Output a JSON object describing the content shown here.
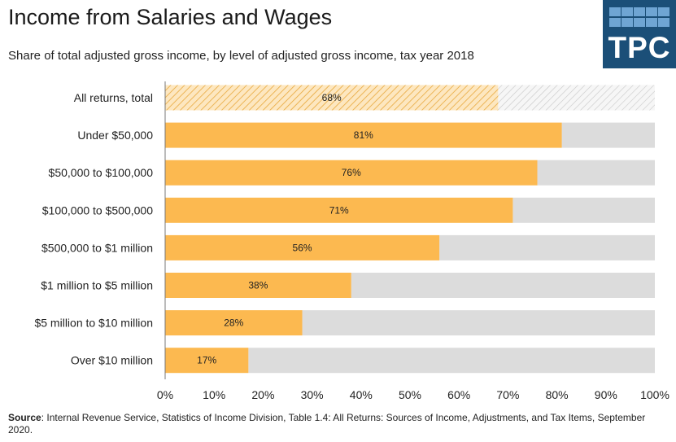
{
  "title": "Income from Salaries and Wages",
  "subtitle": "Share of total adjusted gross income, by level of adjusted gross income, tax year 2018",
  "logo": {
    "text": "TPC",
    "background": "#1b4f78",
    "cell_color": "#6fa5d3"
  },
  "source": {
    "label": "Source",
    "text": ": Internal Revenue Service, Statistics of Income Division, Table 1.4: All Returns: Sources of Income, Adjustments, and Tax Items, September 2020."
  },
  "colors": {
    "bar": "#fcb950",
    "remainder": "#dcdcdc",
    "hatch_line": "#e8a83c",
    "hatch_gray": "#c8c8c8"
  },
  "chart_data": {
    "type": "bar",
    "orientation": "horizontal",
    "stacked": true,
    "categories": [
      "All returns, total",
      "Under $50,000",
      "$50,000 to $100,000",
      "$100,000 to $500,000",
      "$500,000 to $1 million",
      "$1 million to $5 million",
      "$5 million to $10 million",
      "Over $10 million"
    ],
    "values": [
      68,
      81,
      76,
      71,
      56,
      38,
      28,
      17
    ],
    "data_labels": [
      "68%",
      "81%",
      "76%",
      "71%",
      "56%",
      "38%",
      "28%",
      "17%"
    ],
    "hatched_categories": [
      "All returns, total"
    ],
    "xlim": [
      0,
      100
    ],
    "xticks": [
      0,
      10,
      20,
      30,
      40,
      50,
      60,
      70,
      80,
      90,
      100
    ],
    "xtick_labels": [
      "0%",
      "10%",
      "20%",
      "30%",
      "40%",
      "50%",
      "60%",
      "70%",
      "80%",
      "90%",
      "100%"
    ],
    "xlabel": "",
    "ylabel": "",
    "grid": false
  }
}
